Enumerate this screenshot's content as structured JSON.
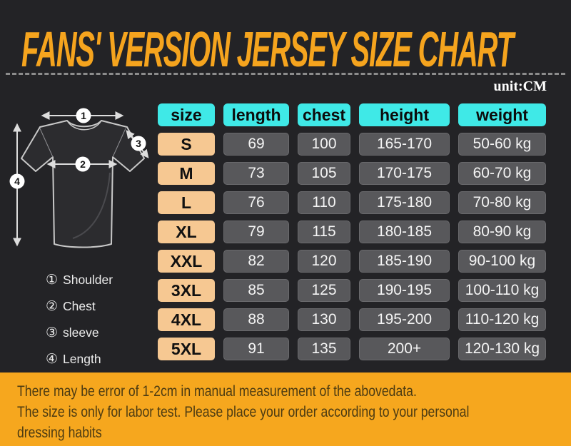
{
  "title": "FANS' VERSION JERSEY SIZE CHART",
  "unit_label": "unit:CM",
  "diagram": {
    "markers": [
      {
        "num": "1"
      },
      {
        "num": "2"
      },
      {
        "num": "3"
      },
      {
        "num": "4"
      }
    ],
    "legend": [
      {
        "symbol": "①",
        "label": "Shoulder"
      },
      {
        "symbol": "②",
        "label": "Chest"
      },
      {
        "symbol": "③",
        "label": "sleeve"
      },
      {
        "symbol": "④",
        "label": "Length"
      }
    ]
  },
  "table": {
    "headers": [
      "size",
      "length",
      "chest",
      "height",
      "weight"
    ],
    "rows": [
      [
        "S",
        "69",
        "100",
        "165-170",
        "50-60 kg"
      ],
      [
        "M",
        "73",
        "105",
        "170-175",
        "60-70 kg"
      ],
      [
        "L",
        "76",
        "110",
        "175-180",
        "70-80 kg"
      ],
      [
        "XL",
        "79",
        "115",
        "180-185",
        "80-90 kg"
      ],
      [
        "XXL",
        "82",
        "120",
        "185-190",
        "90-100 kg"
      ],
      [
        "3XL",
        "85",
        "125",
        "190-195",
        "100-110 kg"
      ],
      [
        "4XL",
        "88",
        "130",
        "195-200",
        "110-120 kg"
      ],
      [
        "5XL",
        "91",
        "135",
        "200+",
        "120-130 kg"
      ]
    ]
  },
  "footer": {
    "lines": [
      "There may be error of 1-2cm in manual measurement of the abovedata.",
      "The size is only for labor test. Please place your order according to your personal",
      "dressing habits"
    ]
  },
  "colors": {
    "background": "#232326",
    "accent_orange": "#F5A41E",
    "footer_orange": "#F6A71E",
    "header_cyan": "#3FE9E7",
    "size_peach": "#F6C892",
    "cell_gray": "#58585B",
    "footer_text": "#4C3B12"
  },
  "chart_data": {
    "type": "table",
    "title": "FANS' VERSION JERSEY SIZE CHART",
    "unit": "CM",
    "columns": [
      "size",
      "length",
      "chest",
      "height",
      "weight"
    ],
    "rows": [
      [
        "S",
        "69",
        "100",
        "165-170",
        "50-60 kg"
      ],
      [
        "M",
        "73",
        "105",
        "170-175",
        "60-70 kg"
      ],
      [
        "L",
        "76",
        "110",
        "175-180",
        "70-80 kg"
      ],
      [
        "XL",
        "79",
        "115",
        "180-185",
        "80-90 kg"
      ],
      [
        "XXL",
        "82",
        "120",
        "185-190",
        "90-100 kg"
      ],
      [
        "3XL",
        "85",
        "125",
        "190-195",
        "100-110 kg"
      ],
      [
        "4XL",
        "88",
        "130",
        "195-200",
        "110-120 kg"
      ],
      [
        "5XL",
        "91",
        "135",
        "200+",
        "120-130 kg"
      ]
    ],
    "measurement_legend": [
      "① Shoulder",
      "② Chest",
      "③ sleeve",
      "④ Length"
    ]
  }
}
